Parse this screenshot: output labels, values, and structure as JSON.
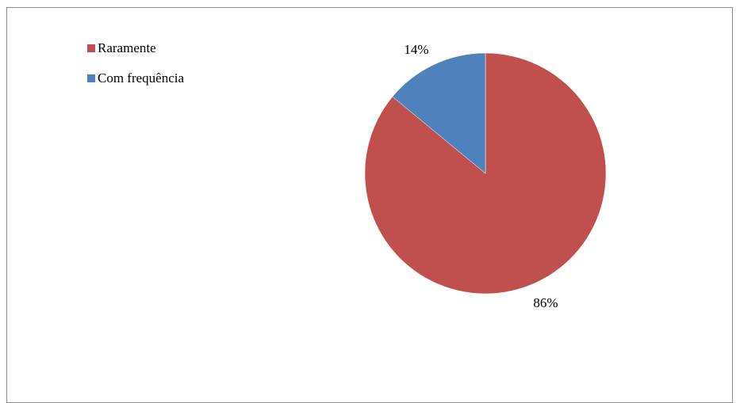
{
  "chart_data": {
    "type": "pie",
    "title": "",
    "slices": [
      {
        "label": "Raramente",
        "value": 86,
        "value_text": "86%",
        "color": "#c0504d"
      },
      {
        "label": "Com frequência",
        "value": 14,
        "value_text": "14%",
        "color": "#4f81bd"
      }
    ],
    "start_angle": "12 o'clock",
    "direction": "clockwise",
    "legend_position": "top-left"
  }
}
